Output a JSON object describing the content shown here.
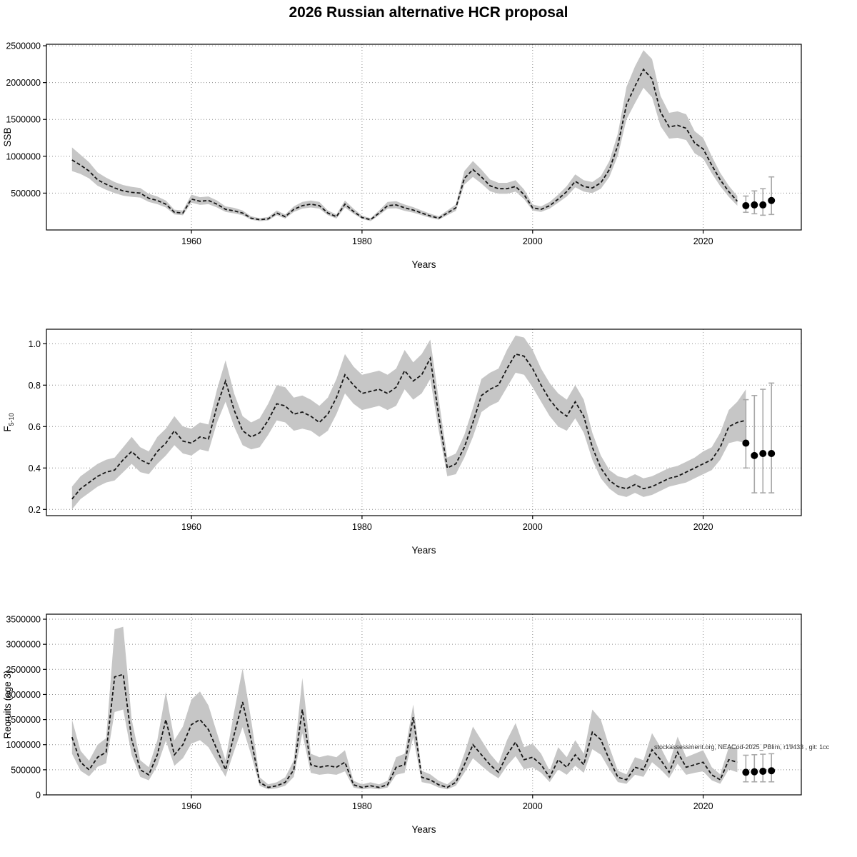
{
  "title": "2026 Russian alternative HCR proposal",
  "watermark": "stockassessment.org, NEACod-2025_PBlim, r19433 , git: 1cc",
  "chart_data": [
    {
      "type": "area",
      "name": "SSB with confidence band and forecast",
      "xlabel": "Years",
      "ylabel": "SSB",
      "xlim": [
        1943,
        2031.5
      ],
      "ylim": [
        0,
        2520000
      ],
      "grid": true,
      "xticks": [
        1960,
        1980,
        2000,
        2020
      ],
      "xtick_labels": [
        "1960",
        "1980",
        "2000",
        "2020"
      ],
      "yticks": [
        500000,
        1000000,
        1500000,
        2000000,
        2500000
      ],
      "ytick_labels": [
        "500000",
        "1000000",
        "1500000",
        "2000000",
        "2500000"
      ],
      "series": {
        "year_start": 1946,
        "year_end": 2024,
        "estimate": [
          950000,
          880000,
          800000,
          680000,
          620000,
          570000,
          530000,
          510000,
          500000,
          430000,
          400000,
          350000,
          240000,
          230000,
          420000,
          390000,
          400000,
          350000,
          280000,
          260000,
          230000,
          160000,
          140000,
          150000,
          230000,
          180000,
          280000,
          330000,
          350000,
          330000,
          230000,
          180000,
          350000,
          250000,
          170000,
          140000,
          230000,
          330000,
          340000,
          300000,
          270000,
          230000,
          190000,
          160000,
          230000,
          300000,
          700000,
          820000,
          720000,
          600000,
          560000,
          560000,
          590000,
          480000,
          300000,
          280000,
          330000,
          420000,
          520000,
          660000,
          590000,
          570000,
          640000,
          820000,
          1150000,
          1700000,
          1950000,
          2180000,
          2050000,
          1600000,
          1400000,
          1420000,
          1380000,
          1180000,
          1100000,
          880000,
          680000,
          520000,
          390000
        ],
        "lower": [
          800000,
          760000,
          700000,
          600000,
          545000,
          500000,
          465000,
          450000,
          440000,
          380000,
          350000,
          305000,
          210000,
          200000,
          370000,
          340000,
          350000,
          305000,
          245000,
          225000,
          200000,
          140000,
          120000,
          130000,
          200000,
          155000,
          245000,
          290000,
          305000,
          290000,
          200000,
          155000,
          305000,
          220000,
          150000,
          120000,
          200000,
          290000,
          295000,
          260000,
          235000,
          200000,
          165000,
          140000,
          200000,
          260000,
          615000,
          720000,
          630000,
          525000,
          490000,
          490000,
          520000,
          420000,
          265000,
          245000,
          290000,
          370000,
          455000,
          580000,
          520000,
          500000,
          560000,
          720000,
          1010000,
          1500000,
          1720000,
          1930000,
          1800000,
          1410000,
          1240000,
          1250000,
          1220000,
          1040000,
          970000,
          770000,
          595000,
          450000,
          330000
        ],
        "upper": [
          1120000,
          1020000,
          920000,
          780000,
          710000,
          650000,
          610000,
          585000,
          570000,
          490000,
          455000,
          400000,
          275000,
          265000,
          480000,
          445000,
          455000,
          400000,
          320000,
          300000,
          265000,
          185000,
          160000,
          175000,
          265000,
          210000,
          320000,
          380000,
          400000,
          380000,
          265000,
          210000,
          400000,
          290000,
          195000,
          160000,
          265000,
          380000,
          390000,
          345000,
          310000,
          265000,
          220000,
          185000,
          265000,
          345000,
          800000,
          935000,
          820000,
          685000,
          640000,
          640000,
          675000,
          550000,
          345000,
          320000,
          380000,
          480000,
          595000,
          755000,
          675000,
          650000,
          730000,
          935000,
          1310000,
          1940000,
          2220000,
          2440000,
          2320000,
          1820000,
          1590000,
          1610000,
          1570000,
          1340000,
          1250000,
          1000000,
          775000,
          600000,
          460000
        ]
      },
      "forecast": {
        "years": [
          2025,
          2026,
          2027,
          2028
        ],
        "estimate": [
          330000,
          340000,
          340000,
          400000
        ],
        "lower": [
          240000,
          220000,
          200000,
          210000
        ],
        "upper": [
          460000,
          530000,
          560000,
          720000
        ]
      }
    },
    {
      "type": "area",
      "name": "Fishing mortality F5-10 with confidence band and forecast",
      "xlabel": "Years",
      "ylabel": "F",
      "ylabel_sub": "5-10",
      "xlim": [
        1943,
        2031.5
      ],
      "ylim": [
        0.17,
        1.07
      ],
      "grid": true,
      "xticks": [
        1960,
        1980,
        2000,
        2020
      ],
      "xtick_labels": [
        "1960",
        "1980",
        "2000",
        "2020"
      ],
      "yticks": [
        0.2,
        0.4,
        0.6,
        0.8,
        1.0
      ],
      "ytick_labels": [
        "0.2",
        "0.4",
        "0.6",
        "0.8",
        "1.0"
      ],
      "series": {
        "year_start": 1946,
        "year_end": 2025,
        "estimate": [
          0.25,
          0.3,
          0.33,
          0.36,
          0.38,
          0.39,
          0.44,
          0.48,
          0.44,
          0.42,
          0.48,
          0.52,
          0.58,
          0.53,
          0.52,
          0.55,
          0.54,
          0.7,
          0.82,
          0.68,
          0.58,
          0.55,
          0.57,
          0.63,
          0.71,
          0.7,
          0.66,
          0.67,
          0.65,
          0.62,
          0.66,
          0.74,
          0.85,
          0.8,
          0.76,
          0.77,
          0.78,
          0.76,
          0.79,
          0.87,
          0.82,
          0.85,
          0.93,
          0.65,
          0.4,
          0.42,
          0.5,
          0.62,
          0.75,
          0.78,
          0.8,
          0.88,
          0.95,
          0.94,
          0.88,
          0.8,
          0.73,
          0.68,
          0.65,
          0.72,
          0.65,
          0.5,
          0.4,
          0.34,
          0.31,
          0.3,
          0.32,
          0.3,
          0.31,
          0.33,
          0.35,
          0.36,
          0.38,
          0.4,
          0.42,
          0.44,
          0.5,
          0.6,
          0.62,
          0.63
        ],
        "lower": [
          0.2,
          0.25,
          0.28,
          0.31,
          0.33,
          0.34,
          0.38,
          0.42,
          0.38,
          0.37,
          0.42,
          0.46,
          0.51,
          0.47,
          0.46,
          0.49,
          0.48,
          0.62,
          0.72,
          0.6,
          0.51,
          0.49,
          0.5,
          0.56,
          0.63,
          0.62,
          0.58,
          0.59,
          0.58,
          0.55,
          0.58,
          0.66,
          0.76,
          0.71,
          0.68,
          0.69,
          0.7,
          0.68,
          0.7,
          0.78,
          0.73,
          0.76,
          0.83,
          0.58,
          0.36,
          0.37,
          0.45,
          0.55,
          0.67,
          0.7,
          0.72,
          0.79,
          0.86,
          0.85,
          0.79,
          0.72,
          0.65,
          0.6,
          0.58,
          0.64,
          0.57,
          0.44,
          0.35,
          0.3,
          0.27,
          0.26,
          0.28,
          0.26,
          0.27,
          0.29,
          0.31,
          0.32,
          0.33,
          0.35,
          0.37,
          0.39,
          0.44,
          0.52,
          0.53,
          0.52
        ],
        "upper": [
          0.31,
          0.36,
          0.39,
          0.42,
          0.44,
          0.45,
          0.5,
          0.55,
          0.5,
          0.48,
          0.55,
          0.59,
          0.65,
          0.6,
          0.59,
          0.62,
          0.61,
          0.78,
          0.92,
          0.76,
          0.65,
          0.62,
          0.64,
          0.71,
          0.8,
          0.79,
          0.74,
          0.75,
          0.73,
          0.7,
          0.74,
          0.83,
          0.95,
          0.89,
          0.85,
          0.86,
          0.87,
          0.85,
          0.88,
          0.97,
          0.91,
          0.95,
          1.02,
          0.73,
          0.45,
          0.47,
          0.56,
          0.69,
          0.83,
          0.86,
          0.88,
          0.97,
          1.04,
          1.03,
          0.97,
          0.88,
          0.81,
          0.76,
          0.73,
          0.8,
          0.73,
          0.57,
          0.46,
          0.39,
          0.36,
          0.35,
          0.37,
          0.35,
          0.36,
          0.38,
          0.4,
          0.41,
          0.43,
          0.45,
          0.48,
          0.5,
          0.57,
          0.68,
          0.72,
          0.78
        ]
      },
      "forecast": {
        "years": [
          2025,
          2026,
          2027,
          2028
        ],
        "estimate": [
          0.52,
          0.46,
          0.47,
          0.47
        ],
        "lower": [
          0.4,
          0.28,
          0.28,
          0.28
        ],
        "upper": [
          0.73,
          0.75,
          0.78,
          0.81
        ]
      }
    },
    {
      "type": "area",
      "name": "Recruits (age 3) with confidence band and forecast",
      "xlabel": "Years",
      "ylabel": "Recruits (age 3)",
      "xlim": [
        1943,
        2031.5
      ],
      "ylim": [
        0,
        3600000
      ],
      "grid": true,
      "xticks": [
        1960,
        1980,
        2000,
        2020
      ],
      "xtick_labels": [
        "1960",
        "1980",
        "2000",
        "2020"
      ],
      "yticks": [
        0,
        500000,
        1000000,
        1500000,
        2000000,
        2500000,
        3000000,
        3500000
      ],
      "ytick_labels": [
        "0",
        "500000",
        "1000000",
        "1500000",
        "2000000",
        "2500000",
        "3000000",
        "3500000"
      ],
      "series": {
        "year_start": 1946,
        "year_end": 2024,
        "estimate": [
          1150000,
          650000,
          500000,
          750000,
          850000,
          2350000,
          2400000,
          1100000,
          500000,
          400000,
          800000,
          1500000,
          800000,
          1000000,
          1400000,
          1500000,
          1300000,
          900000,
          500000,
          1200000,
          1850000,
          1100000,
          250000,
          150000,
          180000,
          250000,
          500000,
          1700000,
          600000,
          550000,
          580000,
          550000,
          650000,
          200000,
          150000,
          180000,
          150000,
          200000,
          550000,
          600000,
          1550000,
          350000,
          300000,
          200000,
          150000,
          250000,
          600000,
          1000000,
          800000,
          600000,
          450000,
          800000,
          1050000,
          700000,
          750000,
          600000,
          350000,
          700000,
          550000,
          800000,
          600000,
          1250000,
          1100000,
          700000,
          350000,
          300000,
          550000,
          500000,
          900000,
          700000,
          450000,
          850000,
          550000,
          600000,
          650000,
          400000,
          300000,
          700000,
          650000
        ],
        "lower": [
          820000,
          480000,
          370000,
          560000,
          630000,
          1650000,
          1700000,
          790000,
          360000,
          290000,
          580000,
          1080000,
          580000,
          730000,
          1020000,
          1090000,
          950000,
          650000,
          360000,
          870000,
          1350000,
          800000,
          180000,
          110000,
          130000,
          180000,
          360000,
          1230000,
          440000,
          400000,
          420000,
          400000,
          470000,
          145000,
          110000,
          130000,
          110000,
          145000,
          400000,
          440000,
          1150000,
          255000,
          220000,
          145000,
          110000,
          180000,
          440000,
          730000,
          580000,
          440000,
          330000,
          580000,
          770000,
          510000,
          550000,
          440000,
          255000,
          510000,
          400000,
          580000,
          440000,
          910000,
          800000,
          510000,
          255000,
          220000,
          400000,
          360000,
          650000,
          510000,
          330000,
          620000,
          400000,
          440000,
          470000,
          290000,
          220000,
          510000,
          450000
        ],
        "upper": [
          1500000,
          880000,
          680000,
          1000000,
          1130000,
          3300000,
          3350000,
          1500000,
          690000,
          550000,
          1090000,
          2050000,
          1090000,
          1360000,
          1900000,
          2060000,
          1780000,
          1230000,
          690000,
          1650000,
          2520000,
          1500000,
          350000,
          210000,
          250000,
          350000,
          690000,
          2330000,
          820000,
          750000,
          790000,
          750000,
          890000,
          280000,
          210000,
          250000,
          210000,
          280000,
          750000,
          820000,
          1800000,
          480000,
          410000,
          280000,
          210000,
          350000,
          820000,
          1360000,
          1090000,
          820000,
          620000,
          1090000,
          1430000,
          950000,
          1020000,
          820000,
          480000,
          950000,
          750000,
          1090000,
          820000,
          1700000,
          1500000,
          950000,
          480000,
          410000,
          750000,
          690000,
          1230000,
          950000,
          620000,
          1160000,
          750000,
          820000,
          890000,
          550000,
          410000,
          950000,
          940000
        ]
      },
      "forecast": {
        "years": [
          2025,
          2026,
          2027,
          2028
        ],
        "estimate": [
          450000,
          460000,
          470000,
          480000
        ],
        "lower": [
          260000,
          260000,
          260000,
          260000
        ],
        "upper": [
          790000,
          800000,
          810000,
          820000
        ]
      }
    }
  ]
}
